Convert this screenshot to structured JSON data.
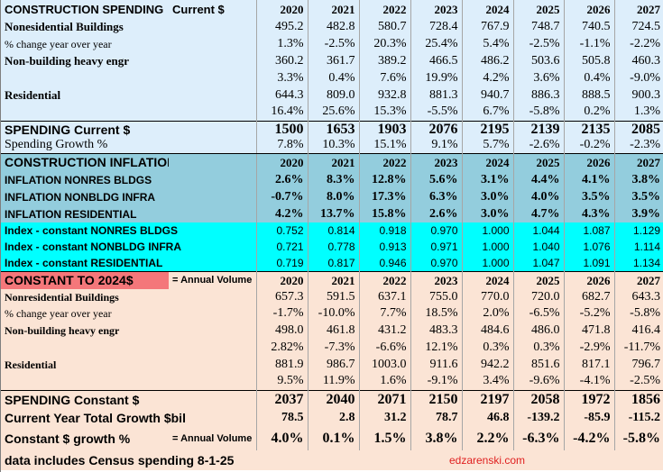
{
  "years": [
    "2020",
    "2021",
    "2022",
    "2023",
    "2024",
    "2025",
    "2026",
    "2027"
  ],
  "current": {
    "title": "CONSTRUCTION SPENDING",
    "subtitle": "Current $",
    "rows": [
      {
        "label": "Nonesidential Buildings",
        "values": [
          "495.2",
          "482.8",
          "580.7",
          "728.4",
          "767.9",
          "748.7",
          "740.5",
          "724.5"
        ]
      },
      {
        "label": "% change year over year",
        "values": [
          "1.3%",
          "-2.5%",
          "20.3%",
          "25.4%",
          "5.4%",
          "-2.5%",
          "-1.1%",
          "-2.2%"
        ]
      },
      {
        "label": "Non-building heavy engr",
        "values": [
          "360.2",
          "361.7",
          "389.2",
          "466.5",
          "486.2",
          "503.6",
          "505.8",
          "460.3"
        ]
      },
      {
        "label": "",
        "values": [
          "3.3%",
          "0.4%",
          "7.6%",
          "19.9%",
          "4.2%",
          "3.6%",
          "0.4%",
          "-9.0%"
        ]
      },
      {
        "label": "Residential",
        "values": [
          "644.3",
          "809.0",
          "932.8",
          "881.3",
          "940.7",
          "886.3",
          "888.5",
          "900.3"
        ]
      },
      {
        "label": "",
        "values": [
          "16.4%",
          "25.6%",
          "15.3%",
          "-5.5%",
          "6.7%",
          "-5.8%",
          "0.2%",
          "1.3%"
        ]
      }
    ],
    "total_label": "SPENDING Current $",
    "total_values": [
      "1500",
      "1653",
      "1903",
      "2076",
      "2195",
      "2139",
      "2135",
      "2085"
    ],
    "growth_label": "Spending Growth %",
    "growth_values": [
      "7.8%",
      "10.3%",
      "15.1%",
      "9.1%",
      "5.7%",
      "-2.6%",
      "-0.2%",
      "-2.3%"
    ]
  },
  "inflation": {
    "title": "CONSTRUCTION INFLATION INDEX",
    "rows": [
      {
        "label": "INFLATION NONRES BLDGS",
        "values": [
          "2.6%",
          "8.3%",
          "12.8%",
          "5.6%",
          "3.1%",
          "4.4%",
          "4.1%",
          "3.8%"
        ]
      },
      {
        "label": "INFLATION NONBLDG INFRA",
        "values": [
          "-0.7%",
          "8.0%",
          "17.3%",
          "6.3%",
          "3.0%",
          "4.0%",
          "3.5%",
          "3.5%"
        ]
      },
      {
        "label": "INFLATION RESIDENTIAL",
        "values": [
          "4.2%",
          "13.7%",
          "15.8%",
          "2.6%",
          "3.0%",
          "4.7%",
          "4.3%",
          "3.9%"
        ]
      }
    ],
    "index_rows": [
      {
        "label": "Index - constant NONRES BLDGS",
        "values": [
          "0.752",
          "0.814",
          "0.918",
          "0.970",
          "1.000",
          "1.044",
          "1.087",
          "1.129"
        ]
      },
      {
        "label": "Index - constant NONBLDG INFRA",
        "values": [
          "0.721",
          "0.778",
          "0.913",
          "0.971",
          "1.000",
          "1.040",
          "1.076",
          "1.114"
        ]
      },
      {
        "label": "Index - constant RESIDENTIAL",
        "values": [
          "0.719",
          "0.817",
          "0.946",
          "0.970",
          "1.000",
          "1.047",
          "1.091",
          "1.134"
        ]
      }
    ]
  },
  "constant": {
    "title": "CONSTANT TO 2024$",
    "note": "= Annual Volume",
    "rows": [
      {
        "label": "Nonresidential Buildings",
        "values": [
          "657.3",
          "591.5",
          "637.1",
          "755.0",
          "770.0",
          "720.0",
          "682.7",
          "643.3"
        ]
      },
      {
        "label": "% change year over year",
        "values": [
          "-1.7%",
          "-10.0%",
          "7.7%",
          "18.5%",
          "2.0%",
          "-6.5%",
          "-5.2%",
          "-5.8%"
        ]
      },
      {
        "label": "Non-building heavy engr",
        "values": [
          "498.0",
          "461.8",
          "431.2",
          "483.3",
          "484.6",
          "486.0",
          "471.8",
          "416.4"
        ]
      },
      {
        "label": "",
        "values": [
          "2.82%",
          "-7.3%",
          "-6.6%",
          "12.1%",
          "0.3%",
          "0.3%",
          "-2.9%",
          "-11.7%"
        ]
      },
      {
        "label": "Residential",
        "values": [
          "881.9",
          "986.7",
          "1003.0",
          "911.6",
          "942.2",
          "851.6",
          "817.1",
          "796.7"
        ]
      },
      {
        "label": "",
        "values": [
          "9.5%",
          "11.9%",
          "1.6%",
          "-9.1%",
          "3.4%",
          "-9.6%",
          "-4.1%",
          "-2.5%"
        ]
      }
    ],
    "total_label": "SPENDING Constant $",
    "total_values": [
      "2037",
      "2040",
      "2071",
      "2150",
      "2197",
      "2058",
      "1972",
      "1856"
    ],
    "growth_total_label": "Current Year Total Growth $bil",
    "growth_total_values": [
      "78.5",
      "2.8",
      "31.2",
      "78.7",
      "46.8",
      "-139.2",
      "-85.9",
      "-115.2"
    ],
    "growth_pct_label": "Constant $ growth %",
    "growth_pct_note": "= Annual Volume",
    "growth_pct_values": [
      "4.0%",
      "0.1%",
      "1.5%",
      "3.8%",
      "2.2%",
      "-6.3%",
      "-4.2%",
      "-5.8%"
    ]
  },
  "footer": {
    "note": "data includes Census spending 8-1-25",
    "watermark": "edzarenski.com"
  },
  "colors": {
    "current_bg": "#ddeefb",
    "inflation_bg": "#93cddd",
    "index_bg": "#00ffff",
    "constant_bg": "#fbe4d5",
    "constant_title_bg": "#f4777a",
    "watermark": "#e02020"
  }
}
